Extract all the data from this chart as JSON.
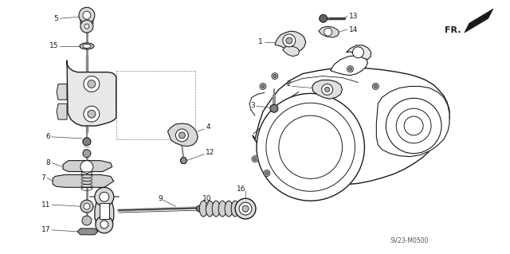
{
  "background_color": "#ffffff",
  "diagram_code": "SV23-M0500",
  "direction_label": "FR.",
  "fig_width": 6.4,
  "fig_height": 3.19,
  "dpi": 100,
  "line_color": "#1a1a1a",
  "text_color": "#1a1a1a",
  "font_size_num": 6.5,
  "font_size_code": 5.5
}
